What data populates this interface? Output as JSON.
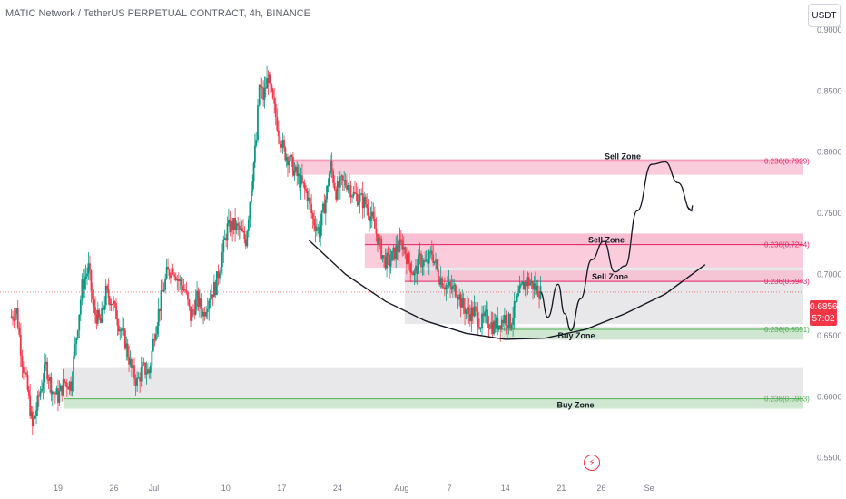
{
  "header": {
    "title": "MATIC Network / TetherUS PERPETUAL CONTRACT, 4h, BINANCE",
    "currency": "USDT"
  },
  "price_tag": {
    "price": "0.6856",
    "countdown": "57:02",
    "color": "#f23645"
  },
  "alert_icon": "lightning-icon",
  "colors": {
    "up": "#089981",
    "down": "#f23645",
    "sell_zone_fill": "#f8bbd0",
    "buy_zone_fill": "#c8e6c9",
    "gray_zone_fill": "#e0e0e3",
    "sell_line": "#e91e63",
    "buy_line": "#4caf50"
  },
  "chart_data": {
    "type": "candlestick",
    "title": "MATIC Network / TetherUS PERPETUAL CONTRACT, 4h, BINANCE",
    "ylim": [
      0.55,
      0.925
    ],
    "y_ticks": [
      "0.9000",
      "0.8500",
      "0.8000",
      "0.7500",
      "0.7000",
      "0.6500",
      "0.6000",
      "0.5500"
    ],
    "x_ticks": [
      {
        "label": "19",
        "day": 19
      },
      {
        "label": "26",
        "day": 26
      },
      {
        "label": "Jul",
        "day": 31
      },
      {
        "label": "10",
        "day": 40
      },
      {
        "label": "17",
        "day": 47
      },
      {
        "label": "24",
        "day": 54
      },
      {
        "label": "Aug",
        "day": 62
      },
      {
        "label": "7",
        "day": 68
      },
      {
        "label": "14",
        "day": 75
      },
      {
        "label": "21",
        "day": 82
      },
      {
        "label": "26",
        "day": 87
      },
      {
        "label": "Se",
        "day": 93
      }
    ],
    "price_path": [
      [
        13.0,
        0.665
      ],
      [
        13.8,
        0.67
      ],
      [
        14.5,
        0.63
      ],
      [
        15.2,
        0.605
      ],
      [
        15.8,
        0.575
      ],
      [
        16.6,
        0.6
      ],
      [
        17.5,
        0.625
      ],
      [
        18.3,
        0.605
      ],
      [
        19.0,
        0.6
      ],
      [
        19.8,
        0.612
      ],
      [
        20.6,
        0.61
      ],
      [
        21.3,
        0.65
      ],
      [
        22.0,
        0.69
      ],
      [
        22.8,
        0.705
      ],
      [
        23.5,
        0.67
      ],
      [
        24.3,
        0.66
      ],
      [
        25.0,
        0.685
      ],
      [
        25.8,
        0.678
      ],
      [
        26.6,
        0.66
      ],
      [
        27.4,
        0.645
      ],
      [
        28.2,
        0.622
      ],
      [
        28.9,
        0.612
      ],
      [
        29.6,
        0.623
      ],
      [
        30.4,
        0.62
      ],
      [
        31.1,
        0.653
      ],
      [
        31.9,
        0.68
      ],
      [
        32.6,
        0.7
      ],
      [
        33.4,
        0.706
      ],
      [
        34.1,
        0.695
      ],
      [
        34.9,
        0.687
      ],
      [
        35.6,
        0.665
      ],
      [
        36.4,
        0.68
      ],
      [
        37.2,
        0.668
      ],
      [
        37.9,
        0.682
      ],
      [
        38.7,
        0.69
      ],
      [
        39.4,
        0.712
      ],
      [
        40.2,
        0.738
      ],
      [
        41.0,
        0.74
      ],
      [
        41.7,
        0.736
      ],
      [
        42.5,
        0.728
      ],
      [
        43.2,
        0.772
      ],
      [
        43.8,
        0.81
      ],
      [
        44.2,
        0.855
      ],
      [
        44.7,
        0.845
      ],
      [
        45.3,
        0.862
      ],
      [
        45.9,
        0.84
      ],
      [
        46.6,
        0.818
      ],
      [
        47.3,
        0.8
      ],
      [
        47.9,
        0.795
      ],
      [
        48.6,
        0.784
      ],
      [
        49.4,
        0.775
      ],
      [
        50.2,
        0.765
      ],
      [
        50.9,
        0.745
      ],
      [
        51.7,
        0.735
      ],
      [
        52.5,
        0.762
      ],
      [
        53.1,
        0.789
      ],
      [
        53.8,
        0.768
      ],
      [
        54.5,
        0.775
      ],
      [
        55.3,
        0.775
      ],
      [
        56.0,
        0.765
      ],
      [
        56.8,
        0.762
      ],
      [
        57.5,
        0.758
      ],
      [
        58.3,
        0.745
      ],
      [
        59.0,
        0.73
      ],
      [
        59.8,
        0.712
      ],
      [
        60.5,
        0.71
      ],
      [
        61.3,
        0.72
      ],
      [
        62.1,
        0.725
      ],
      [
        62.8,
        0.712
      ],
      [
        63.6,
        0.7
      ],
      [
        64.3,
        0.712
      ],
      [
        65.1,
        0.708
      ],
      [
        65.8,
        0.718
      ],
      [
        66.6,
        0.7
      ],
      [
        67.4,
        0.692
      ],
      [
        68.1,
        0.688
      ],
      [
        68.9,
        0.688
      ],
      [
        69.6,
        0.675
      ],
      [
        70.4,
        0.668
      ],
      [
        71.1,
        0.67
      ],
      [
        71.9,
        0.66
      ],
      [
        72.6,
        0.665
      ],
      [
        73.4,
        0.658
      ],
      [
        74.2,
        0.66
      ],
      [
        74.9,
        0.665
      ],
      [
        75.6,
        0.66
      ],
      [
        76.3,
        0.675
      ],
      [
        77.1,
        0.69
      ],
      [
        77.8,
        0.695
      ],
      [
        78.6,
        0.69
      ],
      [
        79.4,
        0.6856
      ]
    ],
    "zones": [
      {
        "label": "Sell Zone",
        "level_label": "0.236(0.7929)",
        "level": 0.7929,
        "top": 0.7935,
        "bottom": 0.7815,
        "kind": "sell",
        "x_start": 48.4
      },
      {
        "label": "Sell Zone",
        "level_label": "0.236(0.7244)",
        "level": 0.7244,
        "top": 0.7335,
        "bottom": 0.7055,
        "kind": "sell",
        "x_start": 57.4
      },
      {
        "label": "Sell Zone",
        "level_label": "0.236(0.6943)",
        "level": 0.6943,
        "top": 0.706,
        "bottom": 0.6595,
        "kind": "sell",
        "x_start": 62.4
      },
      {
        "label": "Buy Zone",
        "level_label": "0.236(0.6551)",
        "level": 0.6551,
        "top": 0.6575,
        "bottom": 0.6465,
        "kind": "buy",
        "x_start": 74.6
      },
      {
        "label": "Buy Zone",
        "level_label": "0.236(0.5983)",
        "level": 0.5983,
        "top": 0.6235,
        "bottom": 0.5915,
        "kind": "buy",
        "x_start": 19.8
      }
    ],
    "projection_path": [
      [
        79.4,
        0.6856
      ],
      [
        80.3,
        0.665
      ],
      [
        81.6,
        0.692
      ],
      [
        82.4,
        0.668
      ],
      [
        83.2,
        0.654
      ],
      [
        84.4,
        0.68
      ],
      [
        85.8,
        0.712
      ],
      [
        87.3,
        0.727
      ],
      [
        88.7,
        0.702
      ],
      [
        90.0,
        0.707
      ],
      [
        91.5,
        0.752
      ],
      [
        93.3,
        0.79
      ],
      [
        95.0,
        0.792
      ],
      [
        96.6,
        0.775
      ],
      [
        98.3,
        0.752
      ]
    ],
    "support_arc": [
      [
        50.4,
        0.728
      ],
      [
        55.0,
        0.7
      ],
      [
        60.0,
        0.678
      ],
      [
        65.0,
        0.662
      ],
      [
        70.0,
        0.652
      ],
      [
        75.0,
        0.647
      ],
      [
        80.0,
        0.648
      ],
      [
        85.0,
        0.655
      ],
      [
        90.0,
        0.668
      ],
      [
        95.0,
        0.684
      ],
      [
        100.0,
        0.708
      ]
    ]
  }
}
